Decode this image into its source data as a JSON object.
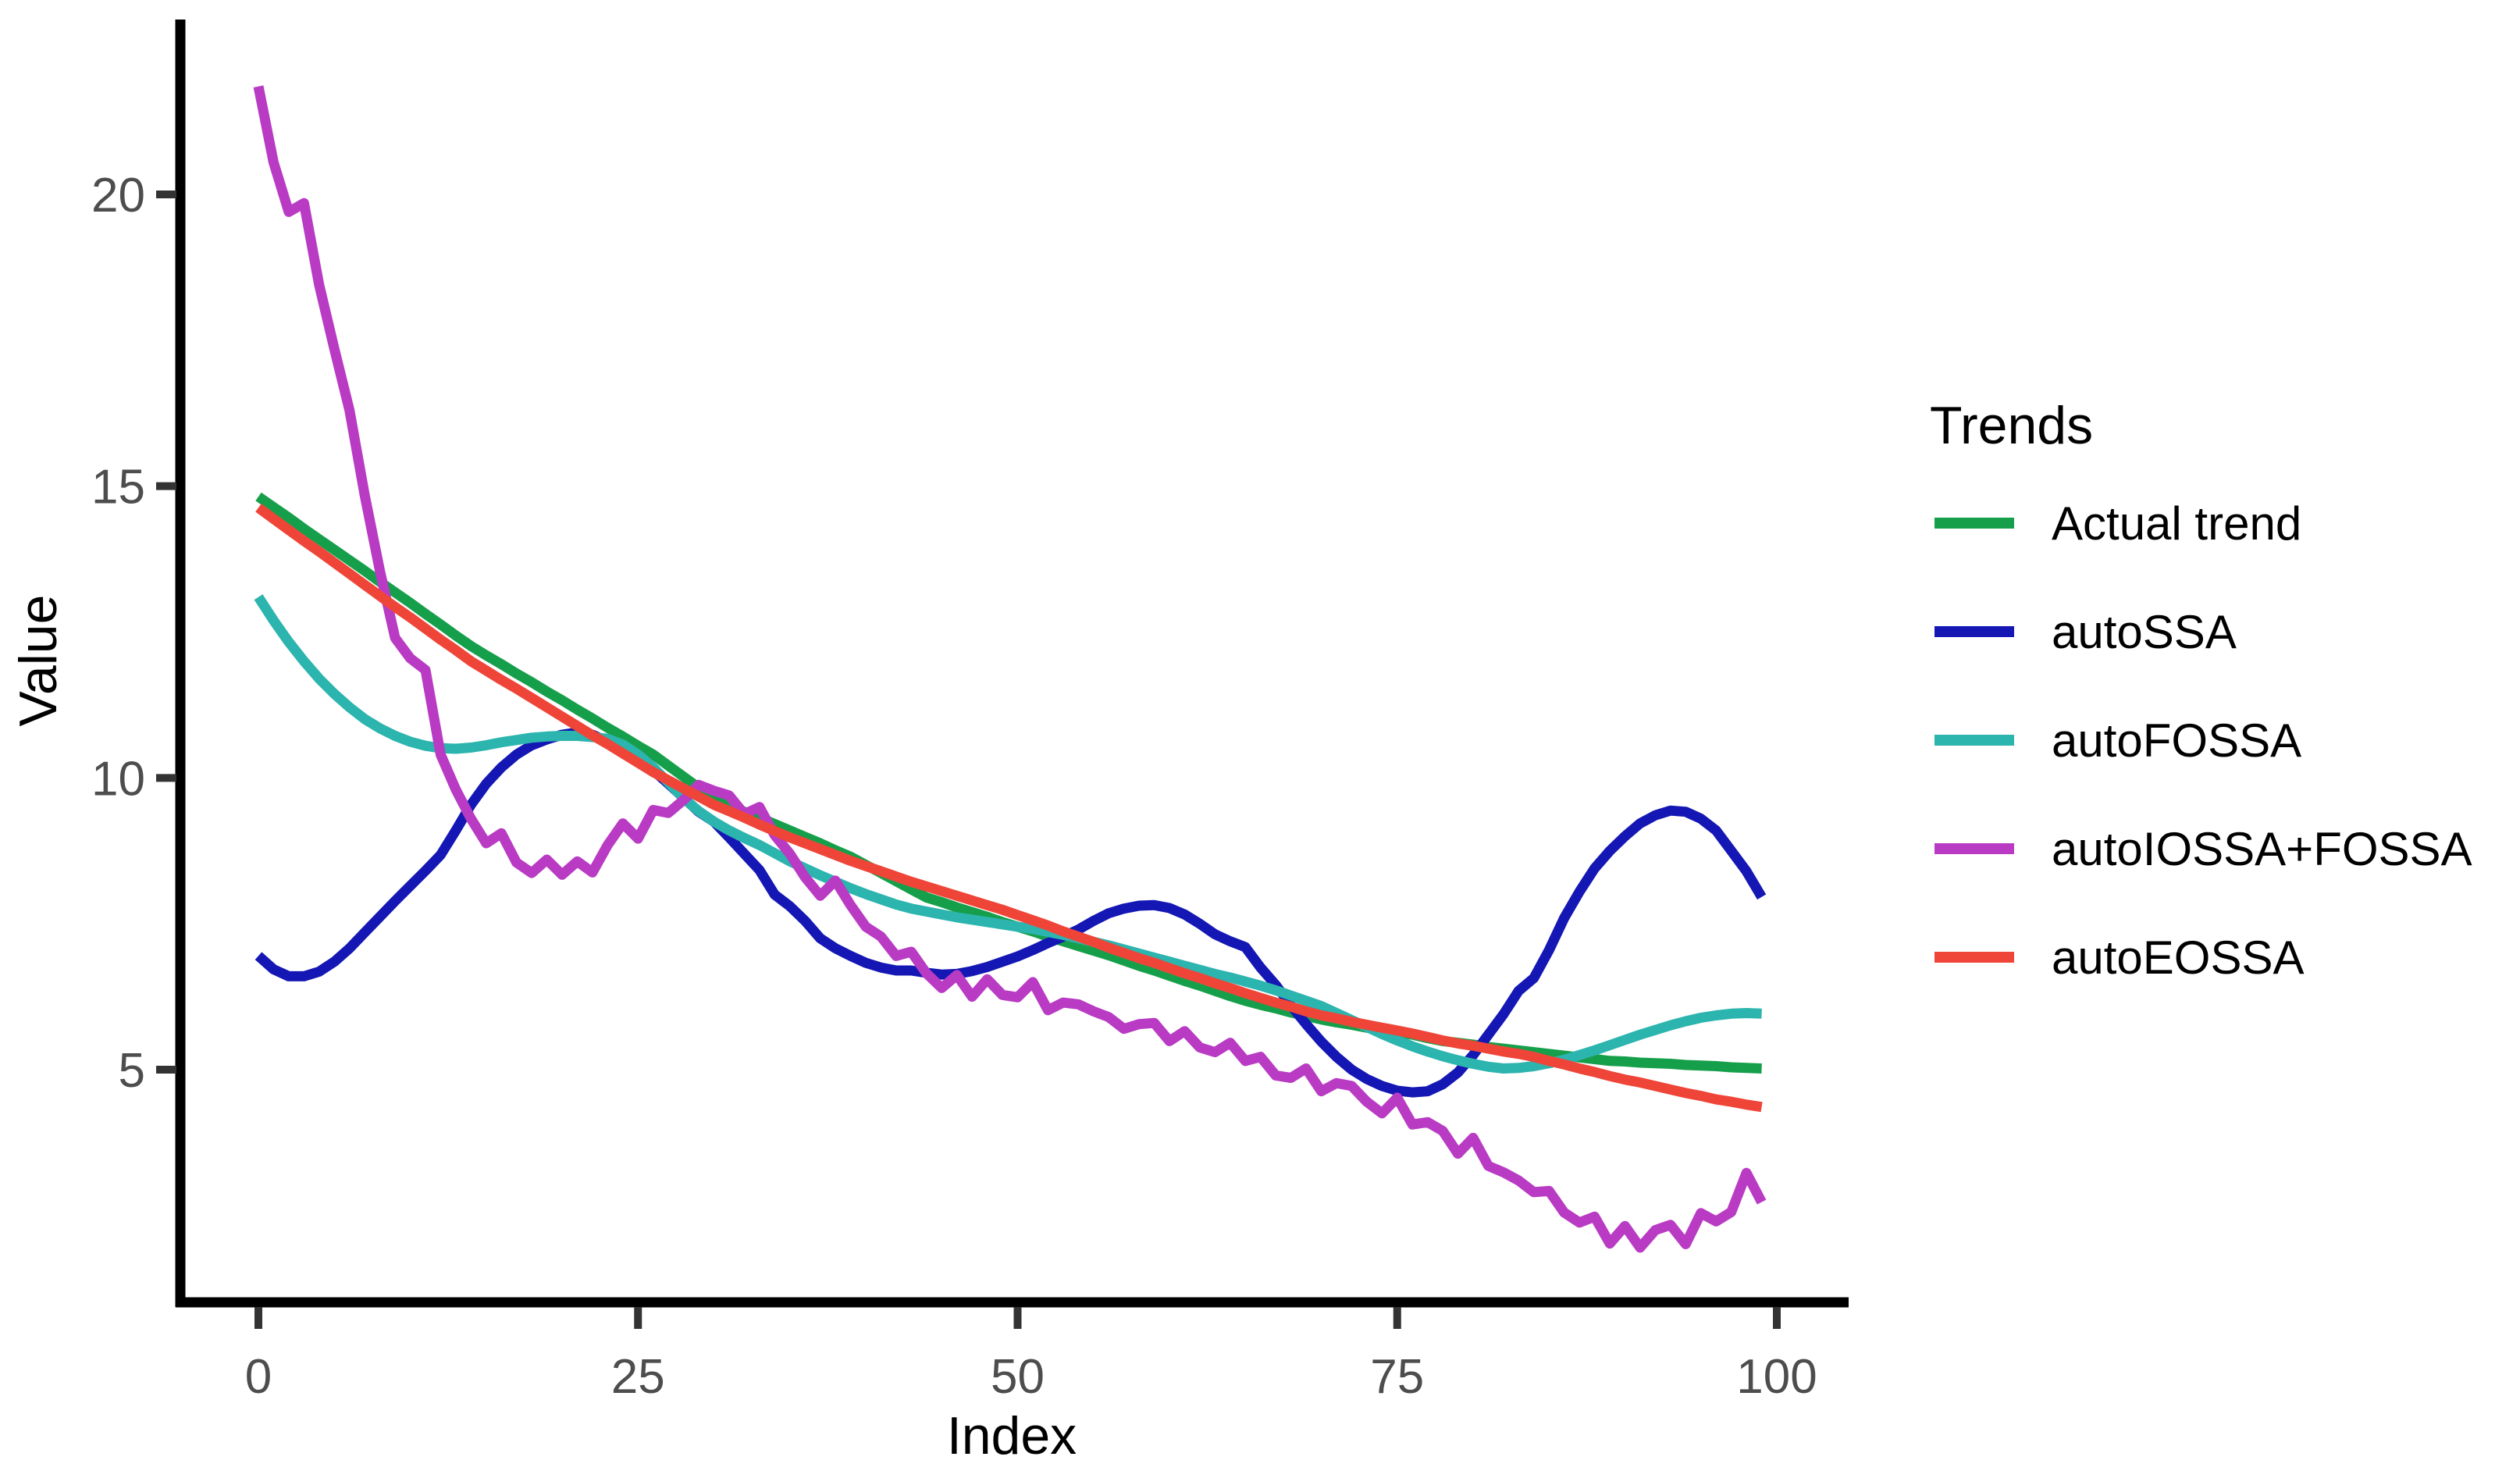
{
  "chart_data": {
    "type": "line",
    "title": "",
    "xlabel": "Index",
    "ylabel": "Value",
    "xlim": [
      0,
      100
    ],
    "ylim": [
      1,
      23
    ],
    "x_ticks": [
      0,
      25,
      50,
      75,
      100
    ],
    "y_ticks": [
      5,
      10,
      15,
      20
    ],
    "grid": false,
    "background_color": "#FFFFFF",
    "axis_line_color": "#000000",
    "tick_mark_color": "#333333",
    "tick_label_color": "#4D4D4D",
    "legend_title": "Trends",
    "legend_position": "right",
    "x_start": 0,
    "x_step": 1,
    "n_points": 100,
    "series": [
      {
        "name": "Actual trend",
        "color": "#169F4B",
        "values": [
          14.82,
          14.64,
          14.46,
          14.27,
          14.09,
          13.91,
          13.73,
          13.55,
          13.36,
          13.18,
          13.0,
          12.81,
          12.63,
          12.44,
          12.26,
          12.1,
          11.95,
          11.79,
          11.64,
          11.48,
          11.33,
          11.17,
          11.02,
          10.86,
          10.71,
          10.55,
          10.4,
          10.21,
          10.02,
          9.83,
          9.64,
          9.53,
          9.42,
          9.32,
          9.21,
          9.1,
          8.99,
          8.88,
          8.76,
          8.65,
          8.51,
          8.37,
          8.23,
          8.09,
          7.95,
          7.87,
          7.78,
          7.7,
          7.62,
          7.53,
          7.45,
          7.37,
          7.28,
          7.2,
          7.12,
          7.04,
          6.96,
          6.87,
          6.78,
          6.7,
          6.61,
          6.52,
          6.44,
          6.35,
          6.26,
          6.18,
          6.11,
          6.05,
          5.98,
          5.92,
          5.86,
          5.81,
          5.77,
          5.72,
          5.68,
          5.64,
          5.6,
          5.54,
          5.49,
          5.46,
          5.43,
          5.39,
          5.36,
          5.33,
          5.3,
          5.27,
          5.24,
          5.21,
          5.18,
          5.15,
          5.14,
          5.12,
          5.11,
          5.1,
          5.08,
          5.07,
          5.06,
          5.04,
          5.03,
          5.02
        ]
      },
      {
        "name": "autoSSA",
        "color": "#1417B3",
        "values": [
          6.95,
          6.72,
          6.6,
          6.6,
          6.68,
          6.85,
          7.08,
          7.35,
          7.62,
          7.89,
          8.15,
          8.41,
          8.68,
          9.1,
          9.54,
          9.9,
          10.18,
          10.4,
          10.56,
          10.66,
          10.74,
          10.78,
          10.74,
          10.62,
          10.47,
          10.3,
          10.13,
          9.9,
          9.66,
          9.42,
          9.25,
          8.98,
          8.7,
          8.42,
          8.0,
          7.8,
          7.55,
          7.25,
          7.08,
          6.95,
          6.83,
          6.75,
          6.7,
          6.7,
          6.66,
          6.63,
          6.64,
          6.69,
          6.76,
          6.85,
          6.94,
          7.05,
          7.17,
          7.28,
          7.4,
          7.55,
          7.68,
          7.76,
          7.81,
          7.82,
          7.77,
          7.66,
          7.5,
          7.32,
          7.2,
          7.1,
          6.75,
          6.45,
          6.1,
          5.78,
          5.48,
          5.22,
          5.0,
          4.84,
          4.72,
          4.64,
          4.61,
          4.63,
          4.75,
          4.95,
          5.25,
          5.6,
          5.95,
          6.35,
          6.57,
          7.05,
          7.6,
          8.05,
          8.45,
          8.75,
          9.0,
          9.22,
          9.36,
          9.44,
          9.42,
          9.3,
          9.1,
          8.75,
          8.4,
          7.96
        ]
      },
      {
        "name": "autoFOSSA",
        "color": "#2CB4AE",
        "values": [
          13.1,
          12.7,
          12.33,
          12.0,
          11.7,
          11.44,
          11.21,
          11.01,
          10.85,
          10.72,
          10.62,
          10.55,
          10.51,
          10.5,
          10.52,
          10.56,
          10.61,
          10.65,
          10.69,
          10.71,
          10.72,
          10.72,
          10.7,
          10.67,
          10.57,
          10.4,
          10.18,
          9.92,
          9.65,
          9.43,
          9.25,
          9.1,
          8.97,
          8.85,
          8.71,
          8.57,
          8.45,
          8.33,
          8.22,
          8.11,
          8.01,
          7.92,
          7.83,
          7.76,
          7.71,
          7.66,
          7.61,
          7.57,
          7.53,
          7.49,
          7.45,
          7.41,
          7.36,
          7.31,
          7.25,
          7.19,
          7.13,
          7.06,
          6.99,
          6.92,
          6.85,
          6.78,
          6.71,
          6.64,
          6.58,
          6.51,
          6.44,
          6.36,
          6.27,
          6.18,
          6.09,
          5.97,
          5.85,
          5.73,
          5.61,
          5.5,
          5.4,
          5.31,
          5.23,
          5.16,
          5.1,
          5.05,
          5.02,
          5.03,
          5.06,
          5.11,
          5.17,
          5.25,
          5.33,
          5.42,
          5.51,
          5.6,
          5.68,
          5.76,
          5.83,
          5.89,
          5.93,
          5.96,
          5.97,
          5.96
        ]
      },
      {
        "name": "autoIOSSA+FOSSA",
        "color": "#B93BC4",
        "values": [
          21.85,
          20.55,
          19.7,
          19.85,
          18.45,
          17.35,
          16.3,
          14.85,
          13.55,
          12.4,
          12.05,
          11.85,
          10.4,
          9.8,
          9.3,
          8.88,
          9.05,
          8.55,
          8.37,
          8.6,
          8.34,
          8.57,
          8.38,
          8.85,
          9.22,
          8.96,
          9.45,
          9.4,
          9.62,
          9.88,
          9.78,
          9.7,
          9.38,
          9.5,
          9.02,
          8.7,
          8.3,
          7.98,
          8.24,
          7.82,
          7.45,
          7.28,
          6.95,
          7.02,
          6.65,
          6.4,
          6.62,
          6.25,
          6.55,
          6.28,
          6.24,
          6.5,
          6.02,
          6.15,
          6.12,
          6.0,
          5.9,
          5.7,
          5.78,
          5.8,
          5.49,
          5.66,
          5.38,
          5.3,
          5.46,
          5.15,
          5.22,
          4.9,
          4.86,
          5.02,
          4.63,
          4.77,
          4.72,
          4.45,
          4.25,
          4.52,
          4.06,
          4.1,
          3.95,
          3.56,
          3.83,
          3.35,
          3.24,
          3.1,
          2.9,
          2.92,
          2.55,
          2.38,
          2.48,
          2.02,
          2.32,
          1.95,
          2.25,
          2.34,
          2.01,
          2.54,
          2.4,
          2.56,
          3.23,
          2.73
        ]
      },
      {
        "name": "autoEOSSA",
        "color": "#EF4539",
        "values": [
          14.63,
          14.44,
          14.25,
          14.06,
          13.88,
          13.69,
          13.5,
          13.31,
          13.12,
          12.93,
          12.75,
          12.56,
          12.37,
          12.19,
          12.0,
          11.84,
          11.68,
          11.53,
          11.37,
          11.21,
          11.05,
          10.89,
          10.73,
          10.58,
          10.42,
          10.26,
          10.1,
          9.96,
          9.82,
          9.68,
          9.54,
          9.43,
          9.32,
          9.2,
          9.09,
          8.98,
          8.88,
          8.78,
          8.68,
          8.58,
          8.49,
          8.4,
          8.31,
          8.22,
          8.14,
          8.06,
          7.98,
          7.9,
          7.82,
          7.74,
          7.65,
          7.56,
          7.47,
          7.37,
          7.28,
          7.19,
          7.09,
          7.0,
          6.91,
          6.83,
          6.74,
          6.65,
          6.57,
          6.48,
          6.4,
          6.31,
          6.23,
          6.15,
          6.08,
          6.0,
          5.93,
          5.88,
          5.82,
          5.77,
          5.72,
          5.67,
          5.62,
          5.56,
          5.5,
          5.45,
          5.41,
          5.36,
          5.31,
          5.27,
          5.22,
          5.15,
          5.09,
          5.02,
          4.96,
          4.89,
          4.83,
          4.78,
          4.72,
          4.66,
          4.6,
          4.55,
          4.49,
          4.45,
          4.4,
          4.36
        ]
      }
    ]
  }
}
